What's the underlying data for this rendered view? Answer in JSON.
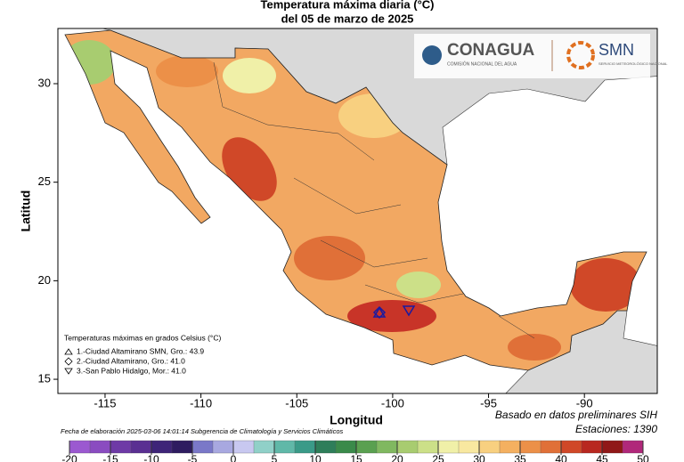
{
  "header": {
    "title": "Temperatura máxima diaria (°C)",
    "subtitle": "del 05 de marzo de 2025"
  },
  "logos": {
    "conagua": "CONAGUA",
    "conagua_sub": "COMISIÓN NACIONAL DEL AGUA",
    "smn": "SMN",
    "smn_sub": "SERVICIO METEOROLÓGICO NACIONAL"
  },
  "map": {
    "x_label": "Longitud",
    "y_label": "Latitud",
    "xlim": [
      -117.46,
      -86.2
    ],
    "ylim": [
      14.28,
      32.8
    ],
    "xticks": [
      -115,
      -110,
      -105,
      -100,
      -95,
      -90
    ],
    "yticks": [
      15,
      20,
      25,
      30
    ]
  },
  "legend": {
    "title": "Temperaturas máximas en grados Celsius (°C)",
    "items": [
      "1.-Ciudad Altamirano SMN, Gro.: 43.9",
      "2.-Ciudad Altamirano, Gro.: 41.0",
      "3.-San Pablo Hidalgo, Mor.: 41.0"
    ]
  },
  "footer": {
    "credit": "Fecha de elaboración 2025-03-06 14:01:14 Subgerencia de Climatología y Servicios Climáticos",
    "source": "Basado en datos preliminares SIH",
    "stations": "Estaciones:  1390"
  },
  "colorbar": {
    "lim": [
      -20,
      50
    ],
    "ticks": [
      -20,
      -15,
      -10,
      -5,
      0,
      5,
      10,
      15,
      20,
      25,
      30,
      35,
      40,
      45,
      50
    ],
    "colors": [
      "#9b59d0",
      "#8a4cc0",
      "#6e3aa6",
      "#5a2f92",
      "#3e2478",
      "#2e1c60",
      "#7a78c8",
      "#a8a8e0",
      "#c8c8f0",
      "#90d0c8",
      "#60b8a8",
      "#3a9a88",
      "#2e7e5a",
      "#3a8a4a",
      "#5aa050",
      "#80b860",
      "#a8cc70",
      "#cce088",
      "#f0f0a8",
      "#f8e8a0",
      "#f8d080",
      "#f4b060",
      "#ec9048",
      "#e07038",
      "#d04828",
      "#b82820",
      "#901818",
      "#b0287a"
    ]
  }
}
